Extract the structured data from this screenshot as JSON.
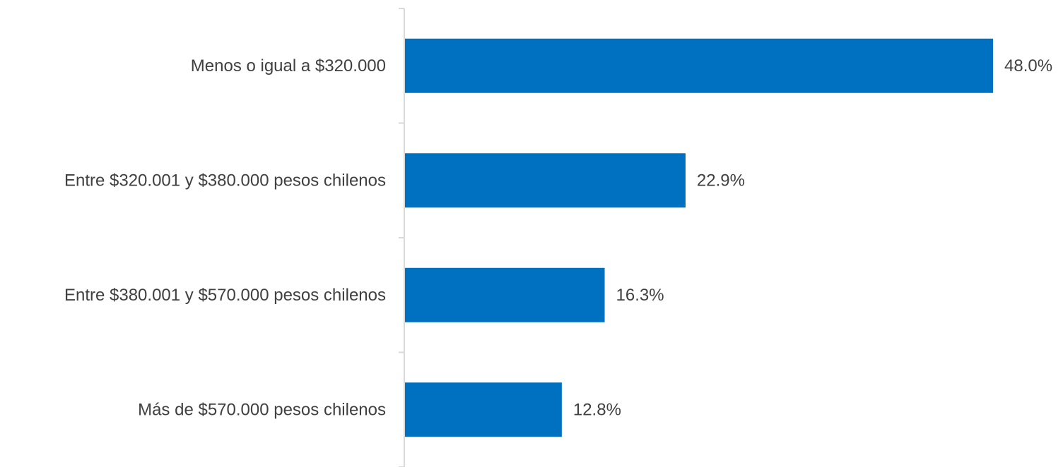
{
  "chart_data": {
    "type": "bar",
    "orientation": "horizontal",
    "categories": [
      "Menos o igual a $320.000",
      "Entre $320.001 y $380.000 pesos chilenos",
      "Entre $380.001 y $570.000 pesos chilenos",
      "Más de $570.000 pesos chilenos"
    ],
    "values": [
      48.0,
      22.9,
      16.3,
      12.8
    ],
    "value_labels": [
      "48.0%",
      "22.9%",
      "16.3%",
      "12.8%"
    ],
    "unit": "%",
    "xlim": [
      0,
      48.0
    ],
    "grid": false,
    "legend": "none",
    "bar_color": "#0070C0"
  }
}
